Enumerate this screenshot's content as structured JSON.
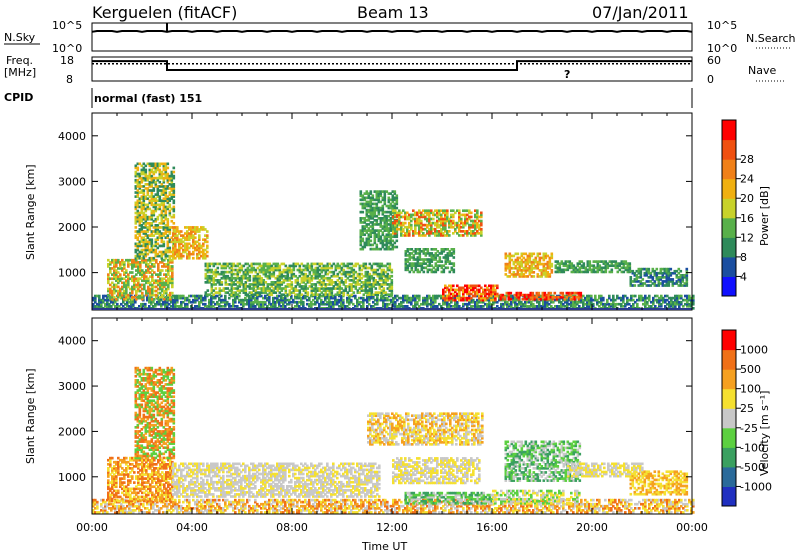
{
  "header": {
    "radar": "Kerguelen (fitACF)",
    "beam": "Beam 13",
    "date": "07/Jan/2011"
  },
  "sky_panel": {
    "left_label": "N.Sky",
    "left_ticks": [
      "10^5",
      "10^0"
    ],
    "right_label": "N.Search",
    "right_ticks": [
      "10^5",
      "10^0"
    ]
  },
  "freq_panel": {
    "left_label_1": "Freq.",
    "left_label_2": "[MHz]",
    "left_ticks": [
      "18",
      "8"
    ],
    "right_label": "Nave",
    "right_ticks": [
      "60",
      "0"
    ],
    "freq_series": [
      {
        "t": 0,
        "v": 16.3
      },
      {
        "t": 3.0,
        "v": 16.3
      },
      {
        "t": 3.0,
        "v": 12.6
      },
      {
        "t": 17.0,
        "v": 12.6
      },
      {
        "t": 17.0,
        "v": 16.3
      },
      {
        "t": 24,
        "v": 16.3
      }
    ],
    "nave_value": 43,
    "nave_marker": {
      "t": 19.0,
      "label": "?"
    }
  },
  "cpid": {
    "label": "CPID",
    "mode": "normal (fast) 151"
  },
  "chart_data": [
    {
      "type": "heatmap",
      "quantity": "power",
      "ylabel": "Slant Range [km]",
      "xlabel": "",
      "ylim": [
        180,
        4500
      ],
      "xlim": [
        0,
        24
      ],
      "yticks": [
        "1000",
        "2000",
        "3000",
        "4000"
      ],
      "colorbar": {
        "label": "Power [dB]",
        "ticks": [
          "4",
          "8",
          "12",
          "16",
          "20",
          "24",
          "28"
        ],
        "colors": [
          "#1010ff",
          "#1a4ea0",
          "#2e8a5a",
          "#58b04a",
          "#c8d22a",
          "#f0b010",
          "#f08018",
          "#f05010",
          "#ff0000"
        ]
      },
      "regions": [
        {
          "t0": 0.0,
          "t1": 24.0,
          "r0": 200,
          "r1": 500,
          "levels": [
            2,
            3,
            1
          ]
        },
        {
          "t0": 0.6,
          "t1": 3.2,
          "r0": 400,
          "r1": 1300,
          "levels": [
            3,
            4,
            6
          ]
        },
        {
          "t0": 1.7,
          "t1": 3.3,
          "r0": 1300,
          "r1": 3400,
          "levels": [
            2,
            4,
            5
          ]
        },
        {
          "t0": 3.2,
          "t1": 4.6,
          "r0": 1300,
          "r1": 2000,
          "levels": [
            4,
            5,
            6
          ]
        },
        {
          "t0": 4.5,
          "t1": 12.0,
          "r0": 500,
          "r1": 1200,
          "levels": [
            2,
            3,
            4
          ]
        },
        {
          "t0": 10.7,
          "t1": 12.2,
          "r0": 1500,
          "r1": 2800,
          "levels": [
            2,
            3
          ]
        },
        {
          "t0": 12.0,
          "t1": 15.6,
          "r0": 1800,
          "r1": 2350,
          "levels": [
            3,
            4,
            5,
            7
          ]
        },
        {
          "t0": 12.5,
          "t1": 14.5,
          "r0": 1000,
          "r1": 1500,
          "levels": [
            2,
            3
          ]
        },
        {
          "t0": 14.0,
          "t1": 16.2,
          "r0": 380,
          "r1": 700,
          "levels": [
            5,
            7,
            8
          ]
        },
        {
          "t0": 16.5,
          "t1": 18.4,
          "r0": 900,
          "r1": 1400,
          "levels": [
            4,
            5,
            6
          ]
        },
        {
          "t0": 16.3,
          "t1": 19.5,
          "r0": 400,
          "r1": 560,
          "levels": [
            6,
            7,
            8
          ]
        },
        {
          "t0": 18.5,
          "t1": 21.5,
          "r0": 1000,
          "r1": 1250,
          "levels": [
            2,
            3
          ]
        },
        {
          "t0": 21.5,
          "t1": 23.8,
          "r0": 700,
          "r1": 1100,
          "levels": [
            1,
            2,
            3
          ]
        }
      ]
    },
    {
      "type": "heatmap",
      "quantity": "velocity",
      "ylabel": "Slant Range [km]",
      "xlabel": "Time UT",
      "ylim": [
        180,
        4500
      ],
      "xlim": [
        0,
        24
      ],
      "yticks": [
        "1000",
        "2000",
        "3000",
        "4000"
      ],
      "xticks": [
        "00:00",
        "04:00",
        "08:00",
        "12:00",
        "16:00",
        "20:00",
        "00:00"
      ],
      "colorbar": {
        "label": "Velocity [m s⁻¹]",
        "ticks": [
          "1000",
          "500",
          "100",
          "25",
          "-25",
          "-100",
          "-500",
          "-1000"
        ],
        "colors": [
          "#2030c0",
          "#2a6a9a",
          "#3aa060",
          "#5cd040",
          "#c8c8c8",
          "#f5e030",
          "#f5a020",
          "#f07018",
          "#ff0000"
        ]
      },
      "regions": [
        {
          "t0": 0.0,
          "t1": 24.0,
          "r0": 200,
          "r1": 480,
          "levels": [
            5,
            6,
            7,
            4
          ]
        },
        {
          "t0": 0.6,
          "t1": 3.2,
          "r0": 450,
          "r1": 1400,
          "levels": [
            6,
            7,
            5
          ]
        },
        {
          "t0": 1.7,
          "t1": 3.3,
          "r0": 1400,
          "r1": 3400,
          "levels": [
            7,
            6,
            3
          ]
        },
        {
          "t0": 3.2,
          "t1": 11.5,
          "r0": 550,
          "r1": 1300,
          "levels": [
            4,
            4,
            5
          ]
        },
        {
          "t0": 11.0,
          "t1": 15.6,
          "r0": 1700,
          "r1": 2400,
          "levels": [
            4,
            5,
            6
          ]
        },
        {
          "t0": 12.0,
          "t1": 15.5,
          "r0": 850,
          "r1": 1400,
          "levels": [
            4,
            5
          ]
        },
        {
          "t0": 12.5,
          "t1": 16.0,
          "r0": 400,
          "r1": 650,
          "levels": [
            3,
            2,
            4
          ]
        },
        {
          "t0": 16.5,
          "t1": 19.5,
          "r0": 900,
          "r1": 1800,
          "levels": [
            3,
            2,
            4
          ]
        },
        {
          "t0": 16.0,
          "t1": 19.5,
          "r0": 400,
          "r1": 700,
          "levels": [
            4,
            3,
            5
          ]
        },
        {
          "t0": 19.0,
          "t1": 22.0,
          "r0": 1000,
          "r1": 1300,
          "levels": [
            4,
            5
          ]
        },
        {
          "t0": 21.5,
          "t1": 23.8,
          "r0": 600,
          "r1": 1100,
          "levels": [
            5,
            6
          ]
        }
      ]
    }
  ]
}
